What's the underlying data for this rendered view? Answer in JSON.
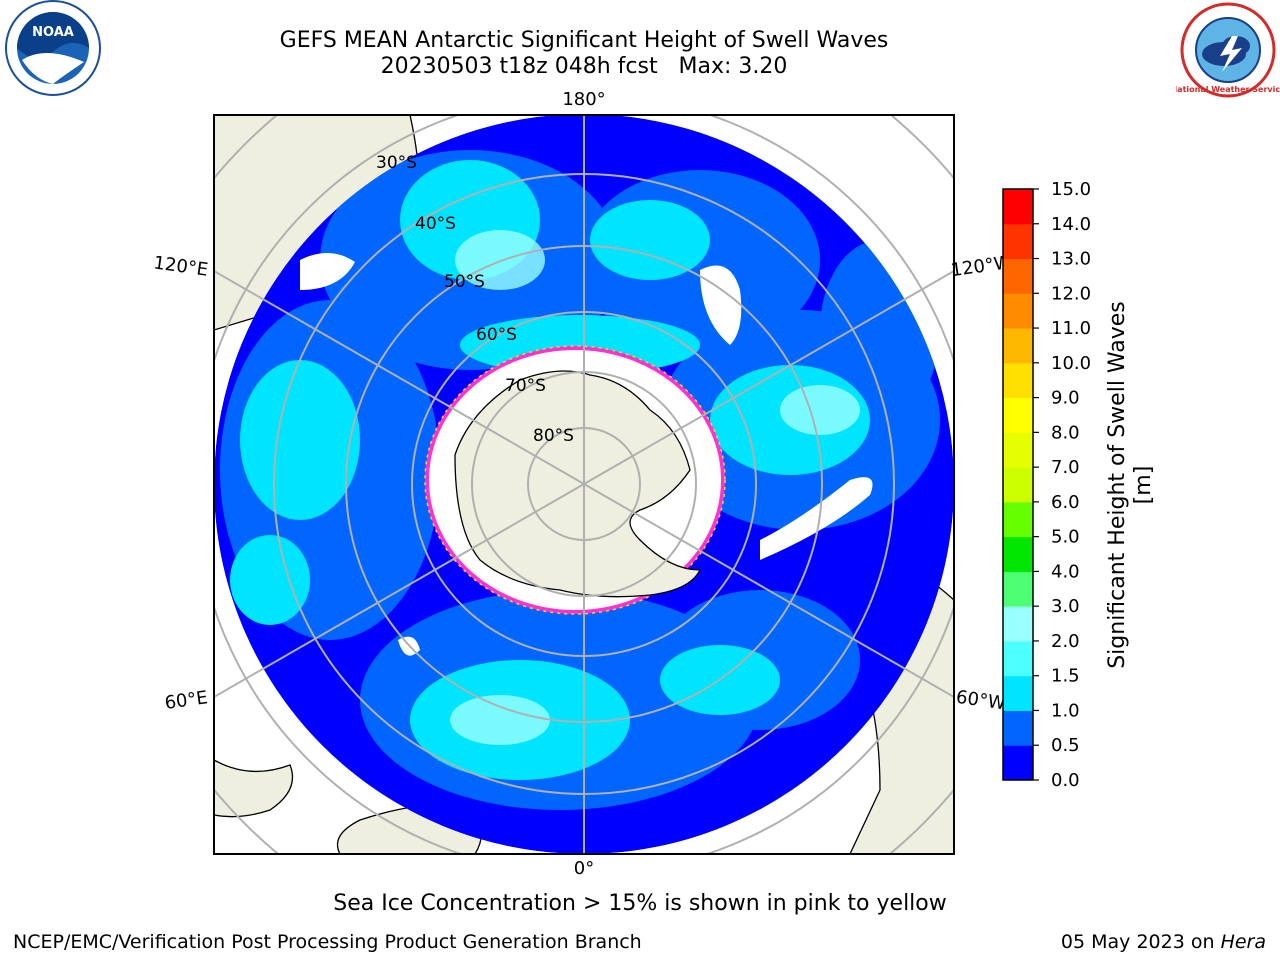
{
  "title_line1": "GEFS MEAN Antarctic Significant Height of Swell Waves",
  "title_line2": "20230503 t18z 048h fcst   Max: 3.20",
  "map": {
    "projection": "south polar stereographic",
    "longitude_labels": [
      "180°",
      "120°E",
      "120°W",
      "60°E",
      "60°W",
      "0°"
    ],
    "latitude_labels": [
      "30°S",
      "40°S",
      "50°S",
      "60°S",
      "70°S",
      "80°S"
    ],
    "land_color": "#efefe0",
    "ice_color": "#ffffff",
    "ice_edge_colors": [
      "#ff33cc",
      "#ffcc33"
    ]
  },
  "colorbar": {
    "label": "Significant Height of Swell Waves [m]",
    "ticks": [
      "0.0",
      "0.5",
      "1.0",
      "1.5",
      "2.0",
      "3.0",
      "4.0",
      "5.0",
      "6.0",
      "7.0",
      "8.0",
      "9.0",
      "10.0",
      "11.0",
      "12.0",
      "13.0",
      "14.0",
      "15.0"
    ],
    "colors": [
      "#0000ff",
      "#0066ff",
      "#00e5ff",
      "#4dffff",
      "#99ffff",
      "#4dff73",
      "#00e600",
      "#66ff00",
      "#ccff00",
      "#e6ff00",
      "#ffff00",
      "#ffe000",
      "#ffb800",
      "#ff8c00",
      "#ff6600",
      "#ff3300",
      "#ff0000"
    ]
  },
  "caption": "Sea Ice Concentration > 15% is shown in pink to yellow",
  "credit": "NCEP/EMC/Verification Post Processing Product Generation Branch",
  "stamp": {
    "date": "05 May 2023 on",
    "host": "Hera"
  },
  "logos": {
    "left": "NOAA",
    "right": "National Weather Service"
  }
}
